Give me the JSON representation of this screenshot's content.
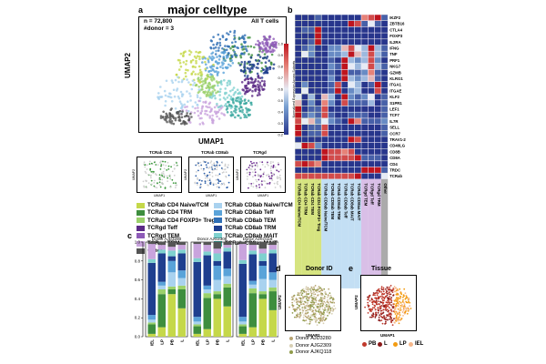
{
  "panel_a": {
    "letter": "a",
    "title": "major celltype",
    "n_text": "n = 72,800",
    "donor_text": "#donor = 3",
    "subset_label": "All T cells",
    "xlabel": "UMAP1",
    "ylabel": "UMAP2",
    "small_umaps": [
      {
        "title": "TCRab CD4",
        "xlabel": "UMAP1",
        "ylabel": "UMAP2",
        "color": "#3d9b3d"
      },
      {
        "title": "TCRab CD8ab",
        "xlabel": "UMAP1",
        "ylabel": "UMAP2",
        "color": "#2e5fa8"
      },
      {
        "title": "TCRgd",
        "xlabel": "UMAP1",
        "ylabel": "UMAP2",
        "color": "#6a2a8f"
      }
    ],
    "legend": [
      {
        "label": "TCRab CD4 Naive/TCM",
        "color": "#c5d84a"
      },
      {
        "label": "TCRab CD4 TRM",
        "color": "#3e8e3e"
      },
      {
        "label": "TCRab CD4 FOXP3+ Treg",
        "color": "#9bd16b"
      },
      {
        "label": "TCRgd Teff",
        "color": "#5b2a86"
      },
      {
        "label": "TCRgd TEM",
        "color": "#8e5bb8"
      },
      {
        "label": "TCRgd TRM",
        "color": "#c9a4dd"
      },
      {
        "label": "Other",
        "color": "#555555"
      },
      {
        "label": "TCRab CD8ab Naive/TCM",
        "color": "#a9d2ef"
      },
      {
        "label": "TCRab CD8ab Teff",
        "color": "#5aa3d9"
      },
      {
        "label": "TCRab CD8ab TEM",
        "color": "#2f6fb5"
      },
      {
        "label": "TCRab CD8ab TRM",
        "color": "#1f3f8f"
      },
      {
        "label": "TCRab CD8ab MAIT",
        "color": "#7fd1cf"
      },
      {
        "label": "TCRab CD8aa MAIT",
        "color": "#3aa89f"
      }
    ]
  },
  "panel_b": {
    "letter": "b",
    "colorbar_label": "Normalized Expression Across Subsets",
    "colorbar_ticks": [
      "1.0",
      "0.9",
      "0.8",
      "0.7",
      "0.6",
      "0.5",
      "0.4",
      "0.3",
      "0.2"
    ],
    "genes": [
      "IKZF2",
      "ZBTB16",
      "CTLA4",
      "FOXP3",
      "IL2RA",
      "IFNG",
      "TNF",
      "PRF1",
      "NKG7",
      "GZMB",
      "KLRG1",
      "ITGA1",
      "ITGAE",
      "KLF2",
      "S1PR1",
      "LEF1",
      "TCF7",
      "IL7R",
      "SELL",
      "CCR7",
      "TRAV1-2",
      "CD40LG",
      "CD8B",
      "CD8A",
      "CD4",
      "TRDC",
      "TCRab"
    ],
    "columns": [
      "TCRab CD4 Naive/TCM",
      "TCRab CD4 TRM",
      "TCRab CD4 TEM",
      "TCRab CD4 FOXP3+ Treg",
      "TCRab CD8ab Naive/TCM",
      "TCRab CD8ab TEM",
      "TCRab CD8ab TRM",
      "TCRab CD8ab Teff",
      "TCRab CD8ab MAIT",
      "TCRab CD8aa MAIT",
      "TCRgd TEM",
      "TCRgd Teff",
      "TCRgd TRM",
      "Other"
    ],
    "column_colors": [
      "#c5d84a",
      "#c5d84a",
      "#c5d84a",
      "#c5d84a",
      "#a9d2ef",
      "#a9d2ef",
      "#a9d2ef",
      "#a9d2ef",
      "#a9d2ef",
      "#a9d2ef",
      "#c9a4dd",
      "#c9a4dd",
      "#c9a4dd",
      "#888888"
    ],
    "matrix": [
      [
        0.2,
        0.2,
        0.2,
        0.3,
        0.2,
        0.2,
        0.2,
        0.2,
        0.2,
        0.2,
        0.8,
        0.9,
        1.0,
        0.3
      ],
      [
        0.2,
        0.2,
        0.2,
        0.2,
        0.2,
        0.2,
        0.2,
        0.2,
        1.0,
        0.9,
        0.3,
        0.6,
        0.3,
        0.2
      ],
      [
        0.2,
        0.3,
        0.3,
        1.0,
        0.2,
        0.2,
        0.2,
        0.2,
        0.2,
        0.2,
        0.2,
        0.2,
        0.2,
        0.2
      ],
      [
        0.2,
        0.2,
        0.2,
        1.0,
        0.2,
        0.2,
        0.2,
        0.2,
        0.2,
        0.2,
        0.2,
        0.2,
        0.2,
        0.2
      ],
      [
        0.2,
        0.2,
        0.3,
        1.0,
        0.2,
        0.2,
        0.2,
        0.2,
        0.2,
        0.2,
        0.2,
        0.2,
        0.2,
        0.2
      ],
      [
        0.2,
        0.3,
        0.4,
        0.2,
        0.2,
        0.4,
        0.4,
        0.7,
        0.9,
        0.6,
        0.5,
        1.0,
        0.5,
        0.3
      ],
      [
        0.2,
        0.6,
        0.4,
        0.2,
        0.2,
        0.4,
        0.4,
        0.5,
        1.0,
        0.7,
        0.5,
        0.9,
        0.5,
        0.3
      ],
      [
        0.2,
        0.2,
        0.2,
        0.2,
        0.2,
        0.3,
        0.2,
        1.0,
        0.5,
        0.4,
        0.5,
        0.9,
        0.4,
        0.2
      ],
      [
        0.2,
        0.2,
        0.2,
        0.2,
        0.2,
        0.4,
        0.3,
        1.0,
        0.6,
        0.5,
        0.6,
        0.9,
        0.5,
        0.3
      ],
      [
        0.2,
        0.2,
        0.2,
        0.2,
        0.2,
        0.3,
        0.2,
        1.0,
        0.3,
        0.3,
        0.4,
        0.8,
        0.3,
        0.2
      ],
      [
        0.2,
        0.2,
        0.2,
        0.2,
        0.2,
        0.4,
        0.2,
        1.0,
        0.5,
        0.4,
        0.5,
        0.7,
        0.3,
        0.2
      ],
      [
        0.2,
        0.4,
        0.2,
        0.2,
        0.2,
        0.3,
        0.9,
        0.2,
        0.6,
        0.5,
        0.2,
        0.3,
        1.0,
        0.2
      ],
      [
        0.2,
        0.6,
        0.2,
        0.2,
        0.2,
        0.3,
        1.0,
        0.2,
        0.4,
        0.5,
        0.2,
        0.2,
        0.9,
        0.2
      ],
      [
        0.6,
        0.2,
        0.5,
        0.2,
        0.7,
        0.5,
        0.2,
        1.0,
        0.4,
        0.3,
        0.4,
        0.6,
        0.2,
        0.3
      ],
      [
        0.7,
        0.2,
        0.4,
        0.2,
        0.8,
        0.4,
        0.2,
        0.9,
        0.3,
        0.3,
        0.3,
        0.5,
        0.2,
        0.3
      ],
      [
        1.0,
        0.2,
        0.3,
        0.3,
        0.9,
        0.2,
        0.2,
        0.2,
        0.2,
        0.2,
        0.2,
        0.2,
        0.2,
        0.3
      ],
      [
        1.0,
        0.3,
        0.4,
        0.3,
        0.9,
        0.3,
        0.2,
        0.2,
        0.3,
        0.3,
        0.3,
        0.2,
        0.2,
        0.3
      ],
      [
        0.9,
        0.6,
        0.7,
        0.4,
        0.6,
        0.4,
        0.3,
        0.2,
        1.0,
        0.8,
        0.3,
        0.3,
        0.3,
        0.4
      ],
      [
        1.0,
        0.2,
        0.3,
        0.3,
        0.9,
        0.2,
        0.2,
        0.2,
        0.2,
        0.2,
        0.2,
        0.2,
        0.2,
        0.3
      ],
      [
        1.0,
        0.2,
        0.3,
        0.3,
        0.9,
        0.2,
        0.2,
        0.2,
        0.2,
        0.2,
        0.2,
        0.2,
        0.2,
        0.3
      ],
      [
        0.2,
        0.2,
        0.2,
        0.2,
        0.2,
        0.2,
        0.2,
        0.2,
        1.0,
        0.9,
        0.2,
        0.2,
        0.2,
        0.2
      ],
      [
        0.6,
        1.0,
        0.9,
        0.4,
        0.2,
        0.2,
        0.2,
        0.2,
        0.2,
        0.2,
        0.2,
        0.2,
        0.2,
        0.2
      ],
      [
        0.2,
        0.2,
        0.2,
        0.2,
        1.0,
        0.9,
        0.9,
        0.8,
        0.9,
        0.2,
        0.2,
        0.2,
        0.2,
        0.2
      ],
      [
        0.2,
        0.2,
        0.2,
        0.2,
        1.0,
        0.9,
        0.9,
        0.9,
        0.9,
        1.0,
        0.3,
        0.3,
        0.3,
        0.2
      ],
      [
        0.9,
        1.0,
        0.9,
        0.8,
        0.2,
        0.2,
        0.2,
        0.2,
        0.2,
        0.2,
        0.2,
        0.2,
        0.2,
        0.2
      ],
      [
        0.2,
        0.2,
        0.2,
        0.2,
        0.2,
        0.2,
        0.2,
        0.2,
        0.2,
        0.2,
        1.0,
        1.0,
        1.0,
        0.3
      ],
      [
        0.9,
        0.9,
        0.9,
        0.9,
        0.9,
        0.9,
        0.9,
        0.9,
        0.9,
        1.0,
        0.2,
        0.2,
        0.2,
        0.6
      ]
    ]
  },
  "panel_c": {
    "letter": "c",
    "yticks": [
      "0.0",
      "0.2",
      "0.4",
      "0.6",
      "0.8",
      "1.0"
    ],
    "donors": [
      {
        "title": "Donor AJD3280",
        "samples": [
          "IEL",
          "LP",
          "PB",
          "L"
        ]
      },
      {
        "title": "Donor AJG2309",
        "samples": [
          "IEL",
          "LP",
          "PB",
          "L"
        ]
      },
      {
        "title": "Donor AJKQ118",
        "samples": [
          "IEL",
          "LP",
          "PB",
          "L"
        ]
      }
    ]
  },
  "panel_d": {
    "letter": "d",
    "title": "Donor ID",
    "xlabel": "UMAP1",
    "ylabel": "UMAP2",
    "legend": [
      {
        "label": "Donor AJD3280",
        "color": "#b8a472"
      },
      {
        "label": "Donor AJG2309",
        "color": "#d7cfb3"
      },
      {
        "label": "Donor AJKQ118",
        "color": "#8f9a4a"
      }
    ]
  },
  "panel_e": {
    "letter": "e",
    "title": "Tissue",
    "xlabel": "UMAP1",
    "ylabel": "UMAP2",
    "legend": [
      {
        "label": "PB",
        "color": "#c0392b"
      },
      {
        "label": "L",
        "color": "#8b1a1a"
      },
      {
        "label": "LP",
        "color": "#f39c12"
      },
      {
        "label": "IEL",
        "color": "#f5b78a"
      }
    ]
  },
  "chart_data": [
    {
      "type": "heatmap",
      "title": "",
      "rows": [
        "IKZF2",
        "ZBTB16",
        "CTLA4",
        "FOXP3",
        "IL2RA",
        "IFNG",
        "TNF",
        "PRF1",
        "NKG7",
        "GZMB",
        "KLRG1",
        "ITGA1",
        "ITGAE",
        "KLF2",
        "S1PR1",
        "LEF1",
        "TCF7",
        "IL7R",
        "SELL",
        "CCR7",
        "TRAV1-2",
        "CD40LG",
        "CD8B",
        "CD8A",
        "CD4",
        "TRDC",
        "TCRab"
      ],
      "columns": [
        "TCRab CD4 Naive/TCM",
        "TCRab CD4 TRM",
        "TCRab CD4 TEM",
        "TCRab CD4 FOXP3+ Treg",
        "TCRab CD8ab Naive/TCM",
        "TCRab CD8ab TEM",
        "TCRab CD8ab TRM",
        "TCRab CD8ab Teff",
        "TCRab CD8ab MAIT",
        "TCRab CD8aa MAIT",
        "TCRgd TEM",
        "TCRgd Teff",
        "TCRgd TRM",
        "Other"
      ],
      "colorbar_range": [
        0.2,
        1.0
      ],
      "colorbar_label": "Normalized Expression Across Subsets"
    },
    {
      "type": "bar",
      "stacked": true,
      "categories": [
        "AJD3280 IEL",
        "AJD3280 LP",
        "AJD3280 PB",
        "AJD3280 L",
        "AJG2309 IEL",
        "AJG2309 LP",
        "AJG2309 PB",
        "AJG2309 L",
        "AJKQ118 IEL",
        "AJKQ118 LP",
        "AJKQ118 PB",
        "AJKQ118 L"
      ],
      "ylim": [
        0,
        1.0
      ],
      "series": [
        {
          "name": "TCRab CD4 Naive/TCM",
          "values": [
            0.03,
            0.1,
            0.45,
            0.3,
            0.03,
            0.08,
            0.4,
            0.32,
            0.03,
            0.1,
            0.4,
            0.28
          ]
        },
        {
          "name": "TCRab CD4 TRM",
          "values": [
            0.1,
            0.35,
            0.05,
            0.2,
            0.08,
            0.33,
            0.05,
            0.2,
            0.08,
            0.36,
            0.05,
            0.2
          ]
        },
        {
          "name": "TCRab CD4 FOXP3+ Treg",
          "values": [
            0.02,
            0.05,
            0.03,
            0.04,
            0.02,
            0.05,
            0.03,
            0.04,
            0.02,
            0.05,
            0.03,
            0.04
          ]
        },
        {
          "name": "TCRab CD8ab Naive/TCM",
          "values": [
            0.03,
            0.04,
            0.15,
            0.08,
            0.03,
            0.04,
            0.12,
            0.08,
            0.03,
            0.04,
            0.13,
            0.08
          ]
        },
        {
          "name": "TCRab CD8ab Teff",
          "values": [
            0.05,
            0.04,
            0.12,
            0.08,
            0.05,
            0.04,
            0.15,
            0.08,
            0.05,
            0.04,
            0.14,
            0.08
          ]
        },
        {
          "name": "TCRab CD8ab TRM",
          "values": [
            0.55,
            0.3,
            0.05,
            0.18,
            0.58,
            0.32,
            0.05,
            0.18,
            0.56,
            0.28,
            0.05,
            0.2
          ]
        },
        {
          "name": "TCRab CD8ab MAIT",
          "values": [
            0.04,
            0.04,
            0.06,
            0.04,
            0.04,
            0.04,
            0.08,
            0.04,
            0.04,
            0.04,
            0.08,
            0.04
          ]
        },
        {
          "name": "TCRgd TRM",
          "values": [
            0.16,
            0.05,
            0.04,
            0.05,
            0.15,
            0.07,
            0.05,
            0.03,
            0.17,
            0.06,
            0.05,
            0.05
          ]
        },
        {
          "name": "Other",
          "values": [
            0.02,
            0.03,
            0.05,
            0.03,
            0.02,
            0.03,
            0.07,
            0.03,
            0.02,
            0.03,
            0.07,
            0.03
          ]
        }
      ]
    }
  ]
}
